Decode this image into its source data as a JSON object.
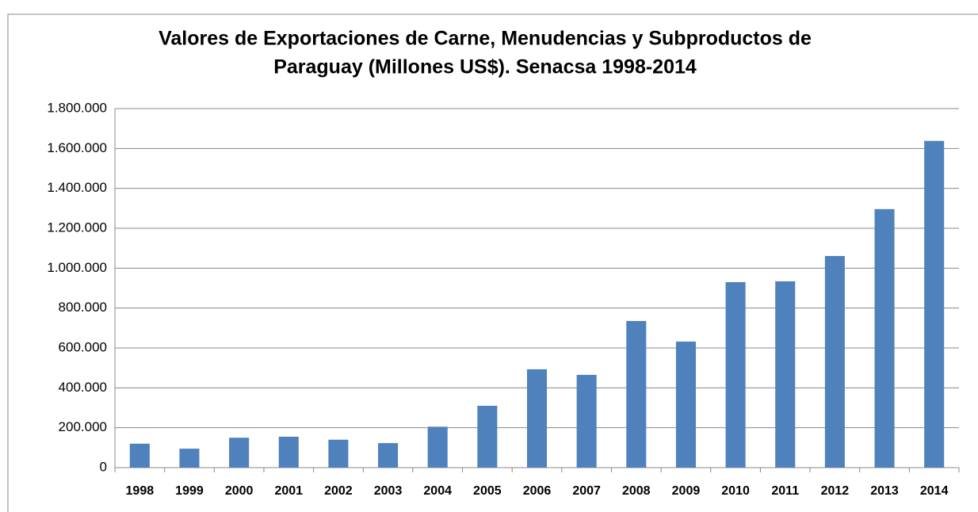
{
  "chart_data": {
    "type": "bar",
    "title": [
      "Valores de Exportaciones de Carne, Menudencias y Subproductos de",
      "Paraguay (Millones US$). Senacsa 1998-2014"
    ],
    "categories": [
      "1998",
      "1999",
      "2000",
      "2001",
      "2002",
      "2003",
      "2004",
      "2005",
      "2006",
      "2007",
      "2008",
      "2009",
      "2010",
      "2011",
      "2012",
      "2013",
      "2014"
    ],
    "values": [
      120000,
      95000,
      150000,
      155000,
      140000,
      123000,
      205000,
      310000,
      493000,
      465000,
      735000,
      632000,
      930000,
      934000,
      1061000,
      1296000,
      1638000
    ],
    "color": "#4f81bd",
    "ylim": [
      0,
      1800000
    ],
    "yticks": [
      0,
      {
        "value": 200000,
        "label": "200.000"
      },
      {
        "value": 400000,
        "label": "400.000"
      },
      {
        "value": 600000,
        "label": "600.000"
      },
      {
        "value": 800000,
        "label": "800.000"
      },
      {
        "value": 1000000,
        "label": "1.000.000"
      },
      {
        "value": 1200000,
        "label": "1.200.000"
      },
      {
        "value": 1400000,
        "label": "1.400.000"
      },
      {
        "value": 1600000,
        "label": "1.600.000"
      },
      {
        "value": 1800000,
        "label": "1.800.000"
      }
    ],
    "grid": true
  }
}
